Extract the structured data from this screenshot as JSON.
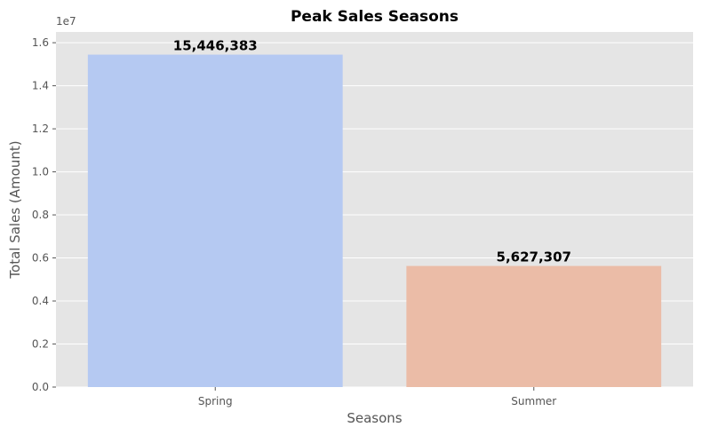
{
  "chart_data": {
    "type": "bar",
    "title": "Peak Sales Seasons",
    "xlabel": "Seasons",
    "ylabel": "Total Sales (Amount)",
    "categories": [
      "Spring",
      "Summer"
    ],
    "values": [
      15446383,
      5627307
    ],
    "data_labels": [
      "15,446,383",
      "5,627,307"
    ],
    "bar_colors": [
      "#b5c9f2",
      "#ebbca7"
    ],
    "ylim": [
      0,
      16500000
    ],
    "y_ticks": [
      0,
      2000000,
      4000000,
      6000000,
      8000000,
      10000000,
      12000000,
      14000000,
      16000000
    ],
    "y_tick_labels": [
      "0.0",
      "0.2",
      "0.4",
      "0.6",
      "0.8",
      "1.0",
      "1.2",
      "1.4",
      "1.6"
    ],
    "y_offset_label": "1e7",
    "grid": true,
    "background": "#e5e5e5"
  }
}
